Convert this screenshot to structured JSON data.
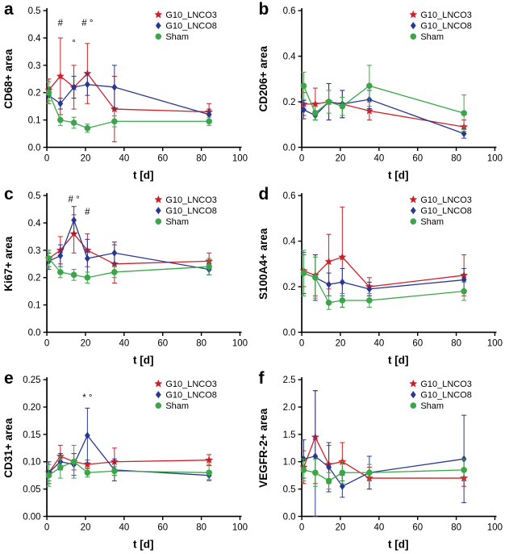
{
  "chart_data": [
    {
      "type": "line",
      "panel_label": "a",
      "ylabel": "CD68+ area",
      "xlabel": "t [d]",
      "xlim": [
        0,
        100
      ],
      "ylim": [
        0,
        0.5
      ],
      "xticks": [
        0,
        20,
        40,
        60,
        80,
        100
      ],
      "yticks": [
        0,
        0.1,
        0.2,
        0.3,
        0.4,
        0.5
      ],
      "ytick_decimals": 1,
      "x": [
        1,
        7,
        14,
        21,
        35,
        84
      ],
      "series": [
        {
          "name": "G10_LNCO3",
          "marker": "star",
          "color": "#cc2128",
          "values": [
            0.21,
            0.26,
            0.22,
            0.27,
            0.14,
            0.13
          ],
          "errors": [
            0.04,
            0.14,
            0.08,
            0.11,
            0.12,
            0.03
          ]
        },
        {
          "name": "G10_LNCO8",
          "marker": "diamond",
          "color": "#283891",
          "values": [
            0.19,
            0.16,
            0.22,
            0.23,
            0.22,
            0.12
          ],
          "errors": [
            0.03,
            0.02,
            0.04,
            0.04,
            0.08,
            0.02
          ]
        },
        {
          "name": "Sham",
          "marker": "circle",
          "color": "#3aa648",
          "values": [
            0.2,
            0.1,
            0.09,
            0.07,
            0.095,
            0.095
          ],
          "errors": [
            0.04,
            0.02,
            0.02,
            0.015,
            0.02,
            0.015
          ]
        }
      ],
      "annotations": [
        {
          "text": "#",
          "x": 7,
          "y": 0.445
        },
        {
          "text": "°",
          "x": 14,
          "y": 0.37
        },
        {
          "text": "# °",
          "x": 21,
          "y": 0.445
        }
      ],
      "grid": false,
      "legend_position": "top-right"
    },
    {
      "type": "line",
      "panel_label": "b",
      "ylabel": "CD206+ area",
      "xlabel": "t [d]",
      "xlim": [
        0,
        100
      ],
      "ylim": [
        0,
        0.6
      ],
      "xticks": [
        0,
        20,
        40,
        60,
        80,
        100
      ],
      "yticks": [
        0,
        0.2,
        0.4,
        0.6
      ],
      "ytick_decimals": 1,
      "x": [
        1,
        7,
        14,
        21,
        35,
        84
      ],
      "series": [
        {
          "name": "G10_LNCO3",
          "marker": "star",
          "color": "#cc2128",
          "values": [
            0.19,
            0.19,
            0.2,
            0.19,
            0.16,
            0.09
          ],
          "errors": [
            0.05,
            0.07,
            0.08,
            0.06,
            0.04,
            0.03
          ]
        },
        {
          "name": "G10_LNCO8",
          "marker": "diamond",
          "color": "#283891",
          "values": [
            0.165,
            0.14,
            0.2,
            0.19,
            0.21,
            0.06
          ],
          "errors": [
            0.04,
            0.02,
            0.08,
            0.06,
            0.04,
            0.02
          ]
        },
        {
          "name": "Sham",
          "marker": "circle",
          "color": "#3aa648",
          "values": [
            0.27,
            0.15,
            0.2,
            0.18,
            0.27,
            0.15
          ],
          "errors": [
            0.06,
            0.03,
            0.05,
            0.04,
            0.09,
            0.08
          ]
        }
      ],
      "annotations": [],
      "grid": false,
      "legend_position": "top-right"
    },
    {
      "type": "line",
      "panel_label": "c",
      "ylabel": "Ki67+ area",
      "xlabel": "t [d]",
      "xlim": [
        0,
        100
      ],
      "ylim": [
        0,
        0.5
      ],
      "xticks": [
        0,
        20,
        40,
        60,
        80,
        100
      ],
      "yticks": [
        0,
        0.1,
        0.2,
        0.3,
        0.4,
        0.5
      ],
      "ytick_decimals": 1,
      "x": [
        1,
        7,
        14,
        21,
        35,
        84
      ],
      "series": [
        {
          "name": "G10_LNCO3",
          "marker": "star",
          "color": "#cc2128",
          "values": [
            0.27,
            0.3,
            0.36,
            0.3,
            0.25,
            0.26
          ],
          "errors": [
            0.03,
            0.05,
            0.07,
            0.06,
            0.07,
            0.03
          ]
        },
        {
          "name": "G10_LNCO8",
          "marker": "diamond",
          "color": "#283891",
          "values": [
            0.26,
            0.28,
            0.41,
            0.27,
            0.29,
            0.23
          ],
          "errors": [
            0.03,
            0.04,
            0.05,
            0.07,
            0.04,
            0.02
          ]
        },
        {
          "name": "Sham",
          "marker": "circle",
          "color": "#3aa648",
          "values": [
            0.27,
            0.22,
            0.21,
            0.2,
            0.22,
            0.24
          ],
          "errors": [
            0.03,
            0.02,
            0.02,
            0.02,
            0.02,
            0.03
          ]
        }
      ],
      "annotations": [
        {
          "text": "# °",
          "x": 14,
          "y": 0.475
        },
        {
          "text": "#",
          "x": 21,
          "y": 0.43
        }
      ],
      "grid": false,
      "legend_position": "top-right"
    },
    {
      "type": "line",
      "panel_label": "d",
      "ylabel": "S100A4+ area",
      "xlabel": "t [d]",
      "xlim": [
        0,
        100
      ],
      "ylim": [
        0,
        0.6
      ],
      "xticks": [
        0,
        20,
        40,
        60,
        80,
        100
      ],
      "yticks": [
        0,
        0.2,
        0.4,
        0.6
      ],
      "ytick_decimals": 1,
      "x": [
        1,
        7,
        14,
        21,
        35,
        84
      ],
      "series": [
        {
          "name": "G10_LNCO3",
          "marker": "star",
          "color": "#cc2128",
          "values": [
            0.27,
            0.25,
            0.31,
            0.33,
            0.2,
            0.25
          ],
          "errors": [
            0.07,
            0.09,
            0.12,
            0.22,
            0.04,
            0.09
          ]
        },
        {
          "name": "G10_LNCO8",
          "marker": "diamond",
          "color": "#283891",
          "values": [
            0.26,
            0.24,
            0.21,
            0.22,
            0.19,
            0.23
          ],
          "errors": [
            0.09,
            0.1,
            0.05,
            0.06,
            0.03,
            0.05
          ]
        },
        {
          "name": "Sham",
          "marker": "circle",
          "color": "#3aa648",
          "values": [
            0.26,
            0.24,
            0.13,
            0.14,
            0.14,
            0.18
          ],
          "errors": [
            0.1,
            0.09,
            0.03,
            0.03,
            0.03,
            0.04
          ]
        }
      ],
      "annotations": [],
      "grid": false,
      "legend_position": "top-right"
    },
    {
      "type": "line",
      "panel_label": "e",
      "ylabel": "CD31+ area",
      "xlabel": "t [d]",
      "xlim": [
        0,
        100
      ],
      "ylim": [
        0,
        0.25
      ],
      "xticks": [
        0,
        20,
        40,
        60,
        80,
        100
      ],
      "yticks": [
        0,
        0.05,
        0.1,
        0.15,
        0.2,
        0.25
      ],
      "ytick_decimals": 2,
      "x": [
        1,
        7,
        14,
        21,
        35,
        84
      ],
      "series": [
        {
          "name": "G10_LNCO3",
          "marker": "star",
          "color": "#cc2128",
          "values": [
            0.08,
            0.11,
            0.1,
            0.095,
            0.1,
            0.103
          ],
          "errors": [
            0.015,
            0.02,
            0.015,
            0.008,
            0.025,
            0.01
          ]
        },
        {
          "name": "G10_LNCO8",
          "marker": "diamond",
          "color": "#283891",
          "values": [
            0.08,
            0.1,
            0.095,
            0.148,
            0.085,
            0.075
          ],
          "errors": [
            0.02,
            0.015,
            0.02,
            0.05,
            0.02,
            0.008
          ]
        },
        {
          "name": "Sham",
          "marker": "circle",
          "color": "#3aa648",
          "values": [
            0.075,
            0.09,
            0.1,
            0.08,
            0.083,
            0.08
          ],
          "errors": [
            0.02,
            0.02,
            0.03,
            0.008,
            0.008,
            0.015
          ]
        }
      ],
      "annotations": [
        {
          "text": "* °",
          "x": 21,
          "y": 0.212
        }
      ],
      "grid": false,
      "legend_position": "top-right"
    },
    {
      "type": "line",
      "panel_label": "f",
      "ylabel": "VEGFR-2+ area",
      "xlabel": "t [d]",
      "xlim": [
        0,
        100
      ],
      "ylim": [
        0,
        2.5
      ],
      "xticks": [
        0,
        20,
        40,
        60,
        80,
        100
      ],
      "yticks": [
        0,
        0.5,
        1.0,
        1.5,
        2.0,
        2.5
      ],
      "ytick_decimals": 1,
      "x": [
        1,
        7,
        14,
        21,
        35,
        84
      ],
      "series": [
        {
          "name": "G10_LNCO3",
          "marker": "star",
          "color": "#cc2128",
          "values": [
            0.9,
            1.45,
            0.95,
            1.0,
            0.7,
            0.7
          ],
          "errors": [
            0.3,
            0.85,
            0.35,
            0.35,
            0.2,
            0.15
          ]
        },
        {
          "name": "G10_LNCO8",
          "marker": "diamond",
          "color": "#283891",
          "values": [
            1.05,
            1.1,
            0.9,
            0.55,
            0.8,
            1.05
          ],
          "errors": [
            0.35,
            1.2,
            0.45,
            0.2,
            0.3,
            0.8
          ]
        },
        {
          "name": "Sham",
          "marker": "circle",
          "color": "#3aa648",
          "values": [
            0.85,
            0.8,
            0.65,
            0.8,
            0.8,
            0.85
          ],
          "errors": [
            0.2,
            0.25,
            0.15,
            0.2,
            0.15,
            0.2
          ]
        }
      ],
      "annotations": [],
      "grid": false,
      "legend_position": "top-right"
    }
  ]
}
